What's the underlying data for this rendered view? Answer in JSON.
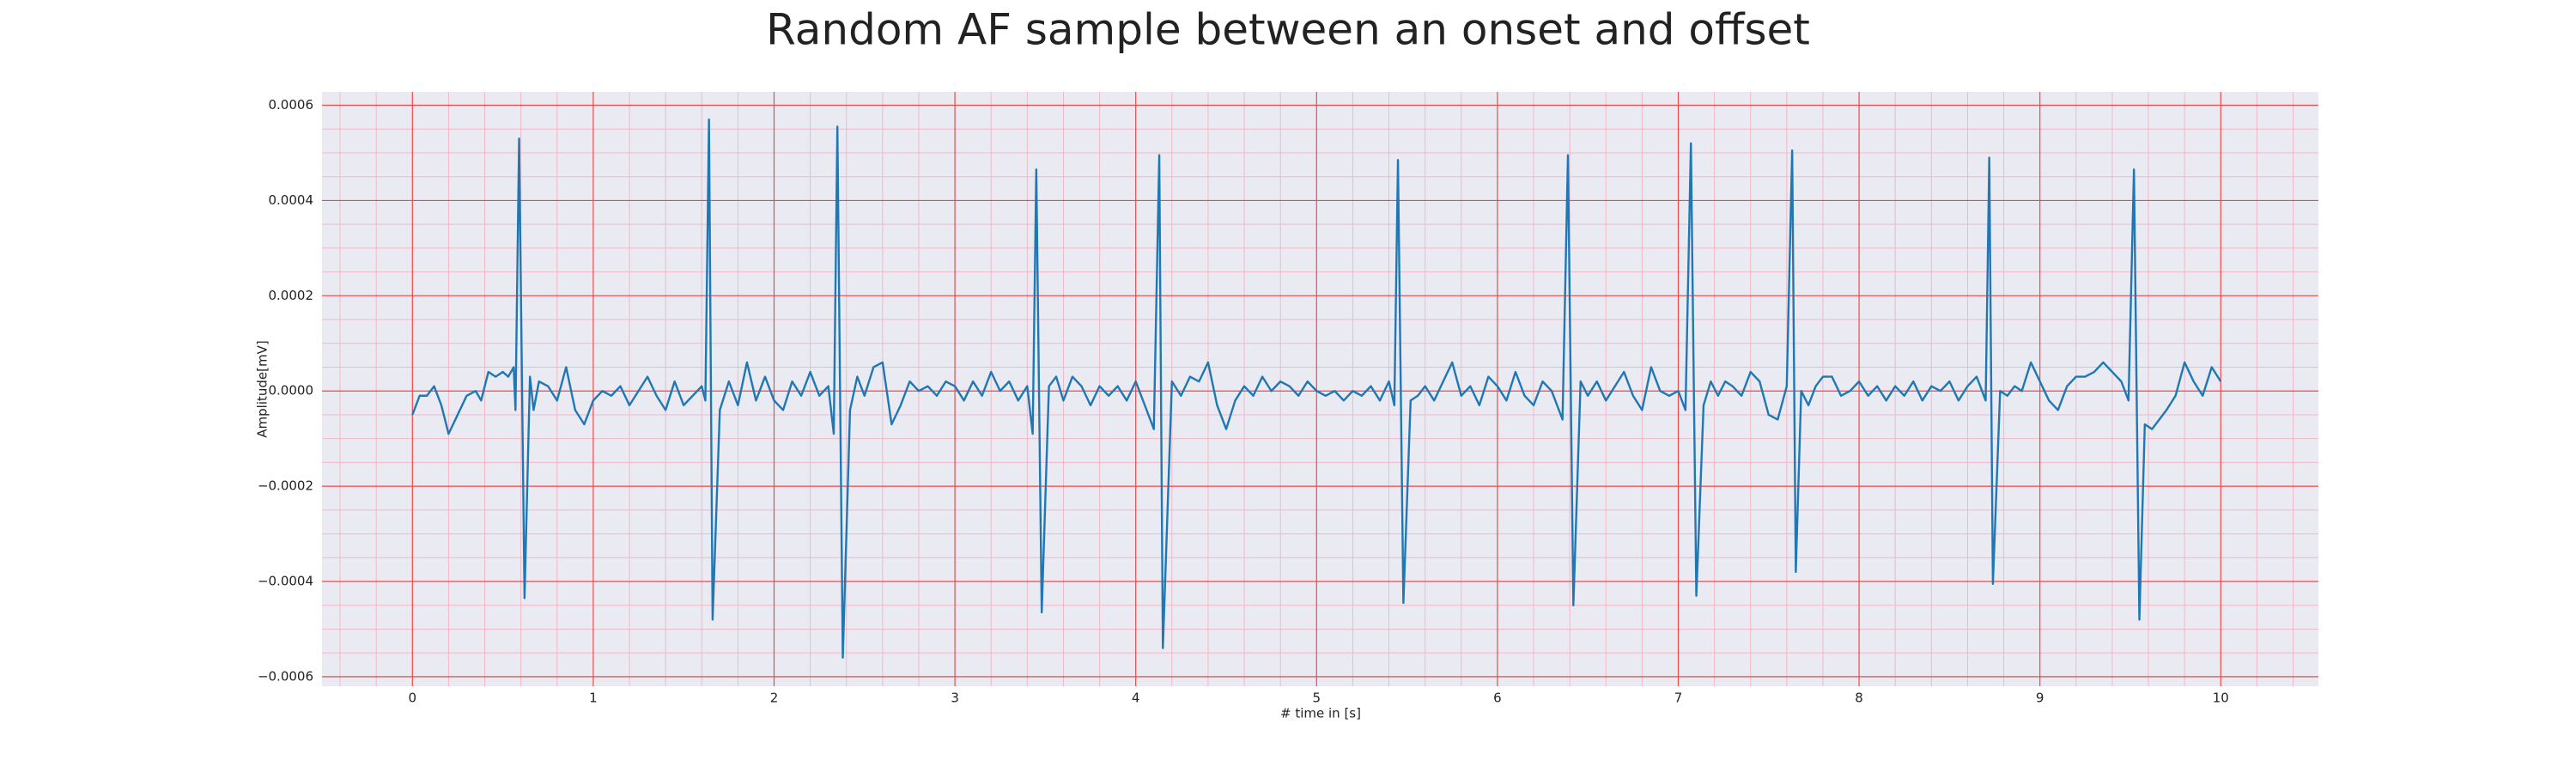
{
  "chart_data": {
    "type": "line",
    "title": "Random AF sample between an onset and offset",
    "xlabel": "# time in [s]",
    "ylabel": "Amplitude[mV]",
    "color": "#1f77b4",
    "grid": true,
    "minor_grid": true,
    "xlim": [
      -0.5,
      10.54
    ],
    "ylim": [
      -0.00062,
      0.000628
    ],
    "xticks": [
      0,
      1,
      2,
      3,
      4,
      5,
      6,
      7,
      8,
      9,
      10
    ],
    "yticks": [
      {
        "value": -0.0006,
        "label": "−0.0006"
      },
      {
        "value": -0.0004,
        "label": "−0.0004"
      },
      {
        "value": -0.0002,
        "label": "−0.0002"
      },
      {
        "value": 0,
        "label": "0.0000"
      },
      {
        "value": 0.0002,
        "label": "0.0002"
      },
      {
        "value": 0.0004,
        "label": "0.0004"
      },
      {
        "value": 0.0006,
        "label": "0.0006"
      }
    ],
    "xminorticks": [
      -0.4,
      -0.2,
      0.2,
      0.4,
      0.6,
      0.8,
      1.2,
      1.4,
      1.6,
      1.8,
      2.2,
      2.4,
      2.6,
      2.8,
      3.2,
      3.4,
      3.6,
      3.8,
      4.2,
      4.4,
      4.6,
      4.8,
      5.2,
      5.4,
      5.6,
      5.8,
      6.2,
      6.4,
      6.6,
      6.8,
      7.2,
      7.4,
      7.6,
      7.8,
      8.2,
      8.4,
      8.6,
      8.8,
      9.2,
      9.4,
      9.6,
      9.8,
      10.2,
      10.4
    ],
    "yminorticks": [
      -0.00055,
      -0.0005,
      -0.00045,
      -0.00035,
      -0.0003,
      -0.00025,
      -0.00015,
      -0.0001,
      -5e-05,
      5e-05,
      0.0001,
      0.00015,
      0.00025,
      0.0003,
      0.00035,
      0.00045,
      0.0005,
      0.00055
    ],
    "x": [
      0,
      0.04,
      0.08,
      0.12,
      0.16,
      0.2,
      0.25,
      0.3,
      0.35,
      0.38,
      0.42,
      0.46,
      0.5,
      0.53,
      0.56,
      0.57,
      0.59,
      0.62,
      0.65,
      0.67,
      0.7,
      0.75,
      0.8,
      0.85,
      0.9,
      0.95,
      1.0,
      1.05,
      1.1,
      1.15,
      1.2,
      1.25,
      1.3,
      1.35,
      1.4,
      1.45,
      1.5,
      1.55,
      1.6,
      1.62,
      1.64,
      1.66,
      1.7,
      1.75,
      1.8,
      1.85,
      1.9,
      1.95,
      2.0,
      2.05,
      2.1,
      2.15,
      2.2,
      2.25,
      2.3,
      2.33,
      2.35,
      2.38,
      2.42,
      2.46,
      2.5,
      2.55,
      2.6,
      2.65,
      2.7,
      2.75,
      2.8,
      2.85,
      2.9,
      2.95,
      3.0,
      3.05,
      3.1,
      3.15,
      3.2,
      3.25,
      3.3,
      3.35,
      3.4,
      3.43,
      3.45,
      3.48,
      3.52,
      3.56,
      3.6,
      3.65,
      3.7,
      3.75,
      3.8,
      3.85,
      3.9,
      3.95,
      4.0,
      4.05,
      4.1,
      4.13,
      4.15,
      4.2,
      4.25,
      4.3,
      4.35,
      4.4,
      4.45,
      4.5,
      4.55,
      4.6,
      4.65,
      4.7,
      4.75,
      4.8,
      4.85,
      4.9,
      4.95,
      5.0,
      5.05,
      5.1,
      5.15,
      5.2,
      5.25,
      5.3,
      5.35,
      5.4,
      5.43,
      5.45,
      5.48,
      5.52,
      5.56,
      5.6,
      5.65,
      5.7,
      5.75,
      5.8,
      5.85,
      5.9,
      5.95,
      6.0,
      6.05,
      6.1,
      6.15,
      6.2,
      6.25,
      6.3,
      6.36,
      6.39,
      6.42,
      6.46,
      6.5,
      6.55,
      6.6,
      6.65,
      6.7,
      6.75,
      6.8,
      6.85,
      6.9,
      6.95,
      7.0,
      7.04,
      7.07,
      7.1,
      7.14,
      7.18,
      7.22,
      7.26,
      7.3,
      7.35,
      7.4,
      7.45,
      7.5,
      7.55,
      7.6,
      7.63,
      7.65,
      7.68,
      7.72,
      7.76,
      7.8,
      7.85,
      7.9,
      7.95,
      8.0,
      8.05,
      8.1,
      8.15,
      8.2,
      8.25,
      8.3,
      8.35,
      8.4,
      8.45,
      8.5,
      8.55,
      8.6,
      8.65,
      8.7,
      8.72,
      8.74,
      8.78,
      8.82,
      8.86,
      8.9,
      8.95,
      9.0,
      9.05,
      9.1,
      9.15,
      9.2,
      9.25,
      9.3,
      9.35,
      9.4,
      9.45,
      9.49,
      9.52,
      9.55,
      9.58,
      9.62,
      9.66,
      9.7,
      9.75,
      9.8,
      9.85,
      9.9,
      9.95,
      10.0
    ],
    "values": [
      -5e-05,
      -1e-05,
      -1e-05,
      1e-05,
      -3e-05,
      -9e-05,
      -5e-05,
      -1e-05,
      0,
      -2e-05,
      4e-05,
      3e-05,
      4e-05,
      3e-05,
      5e-05,
      -4e-05,
      0.00053,
      -0.000435,
      3e-05,
      -4e-05,
      2e-05,
      1e-05,
      -2e-05,
      5e-05,
      -4e-05,
      -7e-05,
      -2e-05,
      0,
      -1e-05,
      1e-05,
      -3e-05,
      0,
      3e-05,
      -1e-05,
      -4e-05,
      2e-05,
      -3e-05,
      -1e-05,
      1e-05,
      -2e-05,
      0.00057,
      -0.00048,
      -4e-05,
      2e-05,
      -3e-05,
      6e-05,
      -2e-05,
      3e-05,
      -2e-05,
      -4e-05,
      2e-05,
      -1e-05,
      4e-05,
      -1e-05,
      1e-05,
      -9e-05,
      0.000555,
      -0.00056,
      -4e-05,
      3e-05,
      -1e-05,
      5e-05,
      6e-05,
      -7e-05,
      -3e-05,
      2e-05,
      0,
      1e-05,
      -1e-05,
      2e-05,
      1e-05,
      -2e-05,
      2e-05,
      -1e-05,
      4e-05,
      0,
      2e-05,
      -2e-05,
      1e-05,
      -9e-05,
      0.000465,
      -0.000465,
      1e-05,
      3e-05,
      -2e-05,
      3e-05,
      1e-05,
      -3e-05,
      1e-05,
      -1e-05,
      1e-05,
      -2e-05,
      2e-05,
      -3e-05,
      -8e-05,
      0.000495,
      -0.00054,
      2e-05,
      -1e-05,
      3e-05,
      2e-05,
      6e-05,
      -3e-05,
      -8e-05,
      -2e-05,
      1e-05,
      -1e-05,
      3e-05,
      0,
      2e-05,
      1e-05,
      -1e-05,
      2e-05,
      0,
      -1e-05,
      0,
      -2e-05,
      0,
      -1e-05,
      1e-05,
      -2e-05,
      2e-05,
      -3e-05,
      0.000485,
      -0.000445,
      -2e-05,
      -1e-05,
      1e-05,
      -2e-05,
      2e-05,
      6e-05,
      -1e-05,
      1e-05,
      -3e-05,
      3e-05,
      1e-05,
      -2e-05,
      4e-05,
      -1e-05,
      -3e-05,
      2e-05,
      0,
      -6e-05,
      0.000495,
      -0.00045,
      2e-05,
      -1e-05,
      2e-05,
      -2e-05,
      1e-05,
      4e-05,
      -1e-05,
      -4e-05,
      5e-05,
      0,
      -1e-05,
      0,
      -4e-05,
      0.00052,
      -0.00043,
      -3e-05,
      2e-05,
      -1e-05,
      2e-05,
      1e-05,
      -1e-05,
      4e-05,
      2e-05,
      -5e-05,
      -6e-05,
      1e-05,
      0.000505,
      -0.00038,
      0,
      -3e-05,
      1e-05,
      3e-05,
      3e-05,
      -1e-05,
      0,
      2e-05,
      -1e-05,
      1e-05,
      -2e-05,
      1e-05,
      -1e-05,
      2e-05,
      -2e-05,
      1e-05,
      0,
      2e-05,
      -2e-05,
      1e-05,
      3e-05,
      -2e-05,
      0.00049,
      -0.000405,
      0,
      -1e-05,
      1e-05,
      0,
      6e-05,
      2e-05,
      -2e-05,
      -4e-05,
      1e-05,
      3e-05,
      3e-05,
      4e-05,
      6e-05,
      4e-05,
      2e-05,
      -2e-05,
      0.000465,
      -0.00048,
      -7e-05,
      -8e-05,
      -6e-05,
      -4e-05,
      -1e-05,
      6e-05,
      2e-05,
      -1e-05,
      5e-05,
      2e-05
    ]
  }
}
